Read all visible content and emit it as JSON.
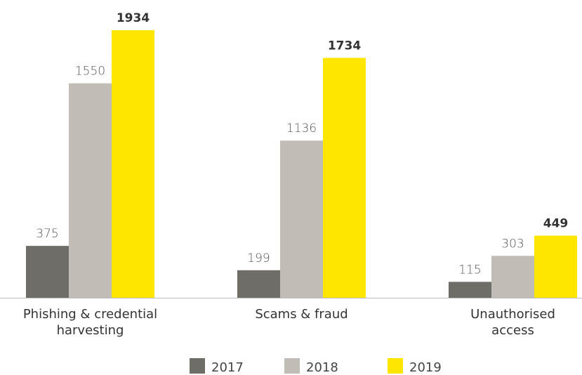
{
  "chart_data": {
    "type": "bar",
    "categories": [
      "Phishing & credential\nharvesting",
      "Scams & fraud",
      "Unauthorised\naccess"
    ],
    "series": [
      {
        "name": "2017",
        "color": "#6e6d67",
        "values": [
          375,
          199,
          115
        ]
      },
      {
        "name": "2018",
        "color": "#c1bcb6",
        "values": [
          1550,
          1136,
          303
        ]
      },
      {
        "name": "2019",
        "color": "#ffe600",
        "values": [
          1934,
          1734,
          449
        ]
      }
    ]
  }
}
